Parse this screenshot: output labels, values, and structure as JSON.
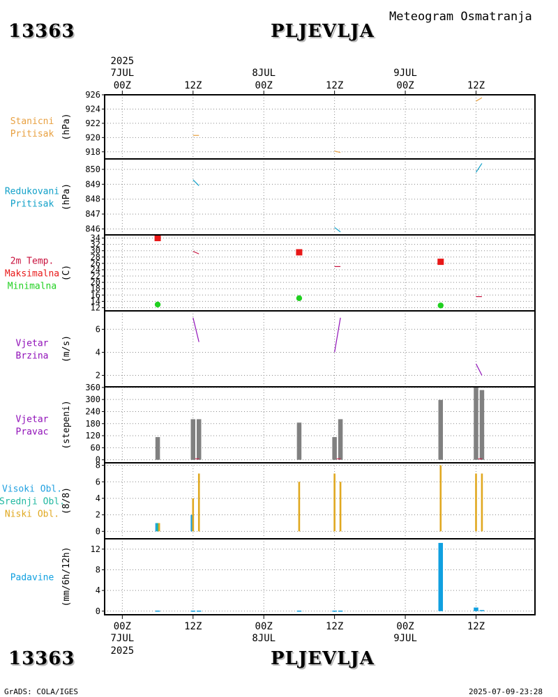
{
  "header": {
    "station_id": "13363",
    "station_name": "PLJEVLJA",
    "subtitle": "Meteogram Osmatranja"
  },
  "footer": {
    "station_id": "13363",
    "station_name": "PLJEVLJA",
    "credit": "GrADS: COLA/IGES",
    "timestamp": "2025-07-09-23:28"
  },
  "colors": {
    "station_pressure": "#e8a040",
    "reduced_pressure": "#10a0c8",
    "temp_line": "#c8103c",
    "temp_max": "#e81818",
    "temp_min": "#20d020",
    "wind": "#9010b8",
    "wind_bar": "#808080",
    "cloud_high": "#20a0e0",
    "cloud_mid": "#20b8a0",
    "cloud_low": "#e0a820",
    "precip": "#10a0e0",
    "grid": "#888888"
  },
  "time_axis": {
    "top_labels": [
      {
        "hour": 0,
        "l1": "2025",
        "l2": "7JUL",
        "l3": "00Z"
      },
      {
        "hour": 12,
        "l1": "",
        "l2": "",
        "l3": "12Z"
      },
      {
        "hour": 24,
        "l1": "",
        "l2": "8JUL",
        "l3": "00Z"
      },
      {
        "hour": 36,
        "l1": "",
        "l2": "",
        "l3": "12Z"
      },
      {
        "hour": 48,
        "l1": "",
        "l2": "9JUL",
        "l3": "00Z"
      },
      {
        "hour": 60,
        "l1": "",
        "l2": "",
        "l3": "12Z"
      }
    ],
    "bottom_labels": [
      {
        "hour": 0,
        "l1": "00Z",
        "l2": "7JUL",
        "l3": "2025"
      },
      {
        "hour": 12,
        "l1": "12Z",
        "l2": "",
        "l3": ""
      },
      {
        "hour": 24,
        "l1": "00Z",
        "l2": "8JUL",
        "l3": ""
      },
      {
        "hour": 36,
        "l1": "12Z",
        "l2": "",
        "l3": ""
      },
      {
        "hour": 48,
        "l1": "00Z",
        "l2": "9JUL",
        "l3": ""
      },
      {
        "hour": 60,
        "l1": "12Z",
        "l2": "",
        "l3": ""
      }
    ],
    "range_hours": [
      -3,
      70
    ]
  },
  "chart_data": [
    {
      "type": "line",
      "id": "station_pressure",
      "labels": [
        "Stanicni",
        "Pritisak"
      ],
      "label_color": "station_pressure",
      "unit": "(hPa)",
      "ylim": [
        917,
        926
      ],
      "yticks": [
        918,
        920,
        922,
        924,
        926
      ],
      "series": [
        {
          "name": "Stanicni Pritisak",
          "color": "station_pressure",
          "segments": [
            [
              [
                12,
                920.3
              ],
              [
                13,
                920.3
              ]
            ],
            [
              [
                36,
                918.1
              ],
              [
                37,
                917.9
              ]
            ],
            [
              [
                60,
                925.1
              ],
              [
                61,
                925.6
              ]
            ]
          ]
        }
      ]
    },
    {
      "type": "line",
      "id": "reduced_pressure",
      "labels": [
        "Redukovani",
        "Pritisak"
      ],
      "label_color": "reduced_pressure",
      "unit": "(hPa)",
      "ylim": [
        845.6,
        850.7
      ],
      "yticks": [
        846,
        847,
        848,
        849,
        850
      ],
      "series": [
        {
          "name": "Redukovani Pritisak",
          "color": "reduced_pressure",
          "segments": [
            [
              [
                12,
                849.3
              ],
              [
                13,
                848.9
              ]
            ],
            [
              [
                36,
                846.1
              ],
              [
                37,
                845.8
              ]
            ],
            [
              [
                60,
                849.8
              ],
              [
                61,
                850.4
              ]
            ]
          ]
        }
      ]
    },
    {
      "type": "scatter",
      "id": "temperature",
      "labels": [
        "2m Temp.",
        "Maksimalna",
        "Minimalna"
      ],
      "label_colors": [
        "temp_line",
        "temp_max",
        "temp_min"
      ],
      "unit": "(C)",
      "ylim": [
        11,
        35
      ],
      "yticks": [
        12,
        14,
        16,
        18,
        20,
        22,
        24,
        26,
        28,
        30,
        32,
        34
      ],
      "series": [
        {
          "name": "2m Temp.",
          "color": "temp_line",
          "kind": "line",
          "segments": [
            [
              [
                12,
                29.8
              ],
              [
                13,
                29.0
              ]
            ],
            [
              [
                36,
                25.0
              ],
              [
                37,
                25.0
              ]
            ],
            [
              [
                60,
                15.5
              ],
              [
                61,
                15.5
              ]
            ]
          ]
        },
        {
          "name": "Maksimalna",
          "color": "temp_max",
          "kind": "square",
          "points": [
            [
              6,
              34
            ],
            [
              30,
              29.5
            ],
            [
              54,
              26.5
            ]
          ]
        },
        {
          "name": "Minimalna",
          "color": "temp_min",
          "kind": "circle",
          "points": [
            [
              6,
              13
            ],
            [
              30,
              15
            ],
            [
              54,
              12.7
            ]
          ]
        }
      ]
    },
    {
      "type": "line",
      "id": "wind_speed",
      "labels": [
        "Vjetar",
        "Brzina"
      ],
      "label_color": "wind",
      "unit": "(m/s)",
      "ylim": [
        1.0,
        7.6
      ],
      "yticks": [
        2,
        4,
        6
      ],
      "series": [
        {
          "name": "Vjetar Brzina",
          "color": "wind",
          "segments": [
            [
              [
                12,
                7.0
              ],
              [
                13,
                4.9
              ]
            ],
            [
              [
                36,
                4.0
              ],
              [
                37,
                7.0
              ]
            ],
            [
              [
                60,
                3.0
              ],
              [
                61,
                2.0
              ]
            ]
          ]
        }
      ]
    },
    {
      "type": "bar",
      "id": "wind_direction",
      "labels": [
        "Vjetar",
        "Pravac"
      ],
      "label_color": "wind",
      "unit": "(stepeni)",
      "ylim": [
        -15,
        363
      ],
      "yticks": [
        0,
        60,
        120,
        180,
        240,
        300,
        360
      ],
      "series": [
        {
          "name": "Vjetar Pravac",
          "color": "wind_bar",
          "bars": [
            [
              6,
              113
            ],
            [
              12,
              202
            ],
            [
              13,
              202
            ],
            [
              30,
              185
            ],
            [
              36,
              113
            ],
            [
              37,
              202
            ],
            [
              54,
              298
            ],
            [
              60,
              360
            ],
            [
              61,
              347
            ]
          ]
        },
        {
          "name": "calm",
          "color": "temp_line",
          "ticks": [
            [
              12.7,
              5
            ],
            [
              36.7,
              5
            ],
            [
              60.7,
              5
            ]
          ]
        }
      ]
    },
    {
      "type": "bar",
      "id": "clouds",
      "labels": [
        "Visoki Obl.",
        "Srednji Obl.",
        "Niski Obl."
      ],
      "label_colors": [
        "cloud_high",
        "cloud_mid",
        "cloud_low"
      ],
      "unit": "(8/8)",
      "ylim": [
        -0.9,
        8.3
      ],
      "yticks": [
        0,
        2,
        4,
        6,
        8
      ],
      "series": [
        {
          "name": "Visoki Obl.",
          "color": "cloud_high",
          "bars": [
            [
              5.75,
              1
            ],
            [
              11.75,
              2
            ]
          ]
        },
        {
          "name": "Srednji Obl.",
          "color": "cloud_mid",
          "bars": [
            [
              6.0,
              1
            ],
            [
              12.0,
              2
            ]
          ]
        },
        {
          "name": "Niski Obl.",
          "color": "cloud_low",
          "bars": [
            [
              6.25,
              1
            ],
            [
              12.0,
              4
            ],
            [
              13,
              7
            ],
            [
              30,
              6
            ],
            [
              36,
              7
            ],
            [
              37,
              6
            ],
            [
              54,
              8
            ],
            [
              60,
              7
            ],
            [
              61,
              7
            ]
          ]
        }
      ]
    },
    {
      "type": "bar",
      "id": "precip",
      "labels": [
        "Padavine"
      ],
      "label_color": "precip",
      "unit": "(mm/6h/12h)",
      "ylim": [
        -0.7,
        14.0
      ],
      "yticks": [
        0,
        4,
        8,
        12
      ],
      "series": [
        {
          "name": "Padavine",
          "color": "precip",
          "bars": [
            [
              6,
              0.1
            ],
            [
              12,
              0.1
            ],
            [
              13,
              0.1
            ],
            [
              30,
              0.1
            ],
            [
              36,
              0.1
            ],
            [
              37,
              0.1
            ],
            [
              54,
              13.2
            ],
            [
              60,
              0.7
            ],
            [
              61,
              0.2
            ]
          ]
        }
      ]
    }
  ]
}
